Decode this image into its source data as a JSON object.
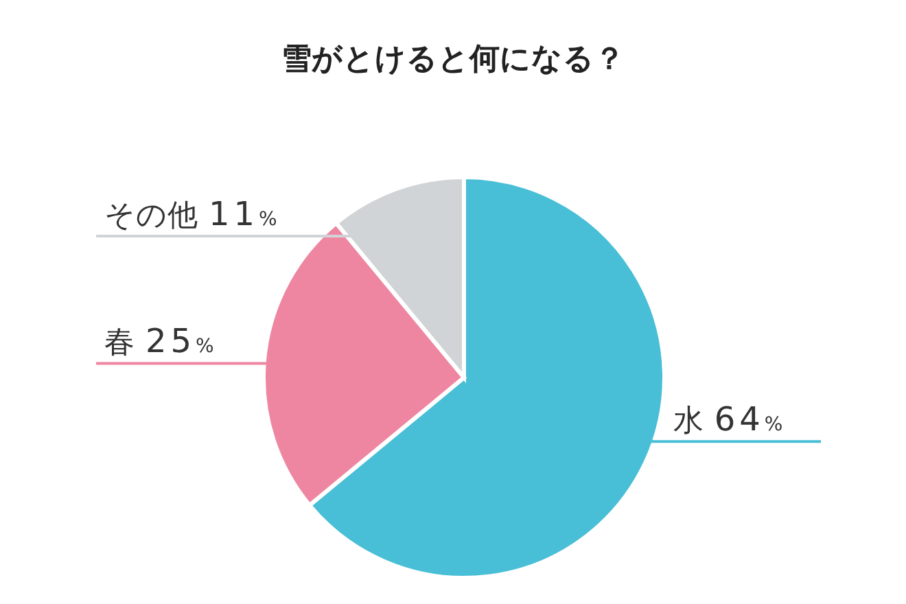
{
  "chart_data": {
    "type": "pie",
    "title": "雪がとけると何になる？",
    "categories": [
      "水",
      "春",
      "その他"
    ],
    "values": [
      64,
      25,
      11
    ],
    "colors": [
      "#48bfd6",
      "#ee86a2",
      "#d0d4d6"
    ],
    "value_labels": [
      "64%",
      "25%",
      "11%"
    ]
  }
}
